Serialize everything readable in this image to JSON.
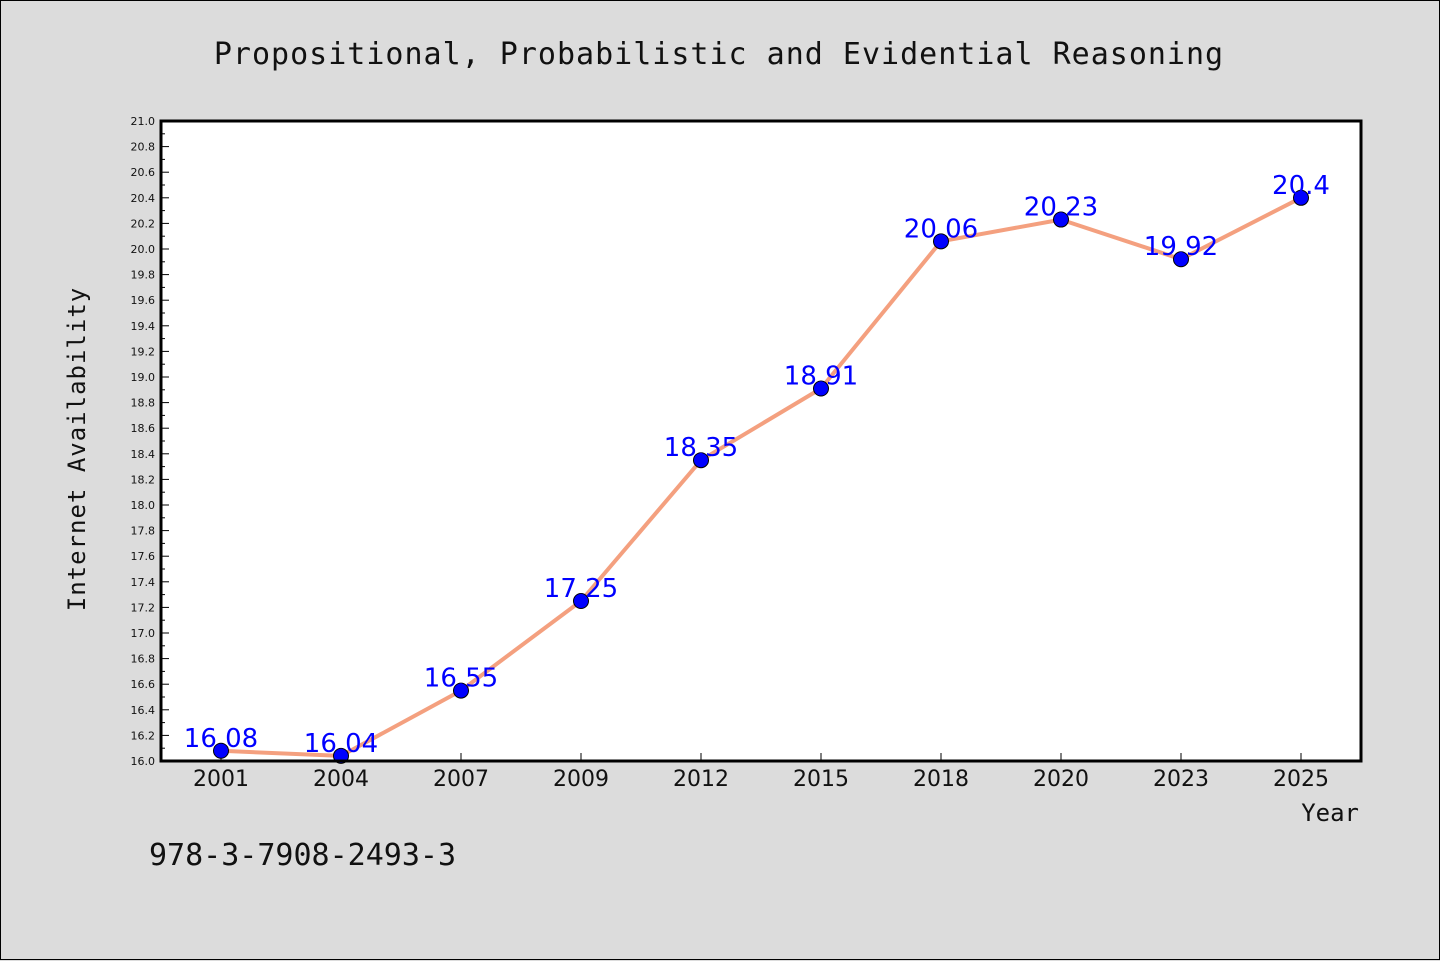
{
  "chart_data": {
    "type": "line",
    "title": "Propositional, Probabilistic and Evidential Reasoning",
    "xlabel": "Year",
    "ylabel": "Internet Availability",
    "categories": [
      "2001",
      "2004",
      "2007",
      "2009",
      "2012",
      "2015",
      "2018",
      "2020",
      "2023",
      "2025"
    ],
    "series": [
      {
        "values": [
          16.08,
          16.04,
          16.55,
          17.25,
          18.35,
          18.91,
          20.06,
          20.23,
          19.92,
          20.4
        ],
        "data_labels": [
          "16.08",
          "16.04",
          "16.55",
          "17.25",
          "18.35",
          "18.91",
          "20.06",
          "20.23",
          "19.92",
          "20.4"
        ],
        "line_color": "#f4a07f",
        "marker_color": "#0000ff"
      }
    ],
    "ylim": [
      16.0,
      21.0
    ],
    "yticks": [
      "16.0",
      "16.2",
      "16.4",
      "16.6",
      "16.8",
      "17.0",
      "17.2",
      "17.4",
      "17.6",
      "17.8",
      "18.0",
      "18.2",
      "18.4",
      "18.6",
      "18.8",
      "19.0",
      "19.2",
      "19.4",
      "19.6",
      "19.8",
      "20.0",
      "20.2",
      "20.4",
      "20.6",
      "20.8",
      "21.0"
    ],
    "grid": false,
    "legend": "none"
  },
  "footer": {
    "isbn": "978-3-7908-2493-3"
  },
  "colors": {
    "background": "#dcdcdc",
    "plot_background": "#ffffff",
    "line": "#f4a07f",
    "marker": "#0000ff",
    "data_label": "#0000ff"
  }
}
